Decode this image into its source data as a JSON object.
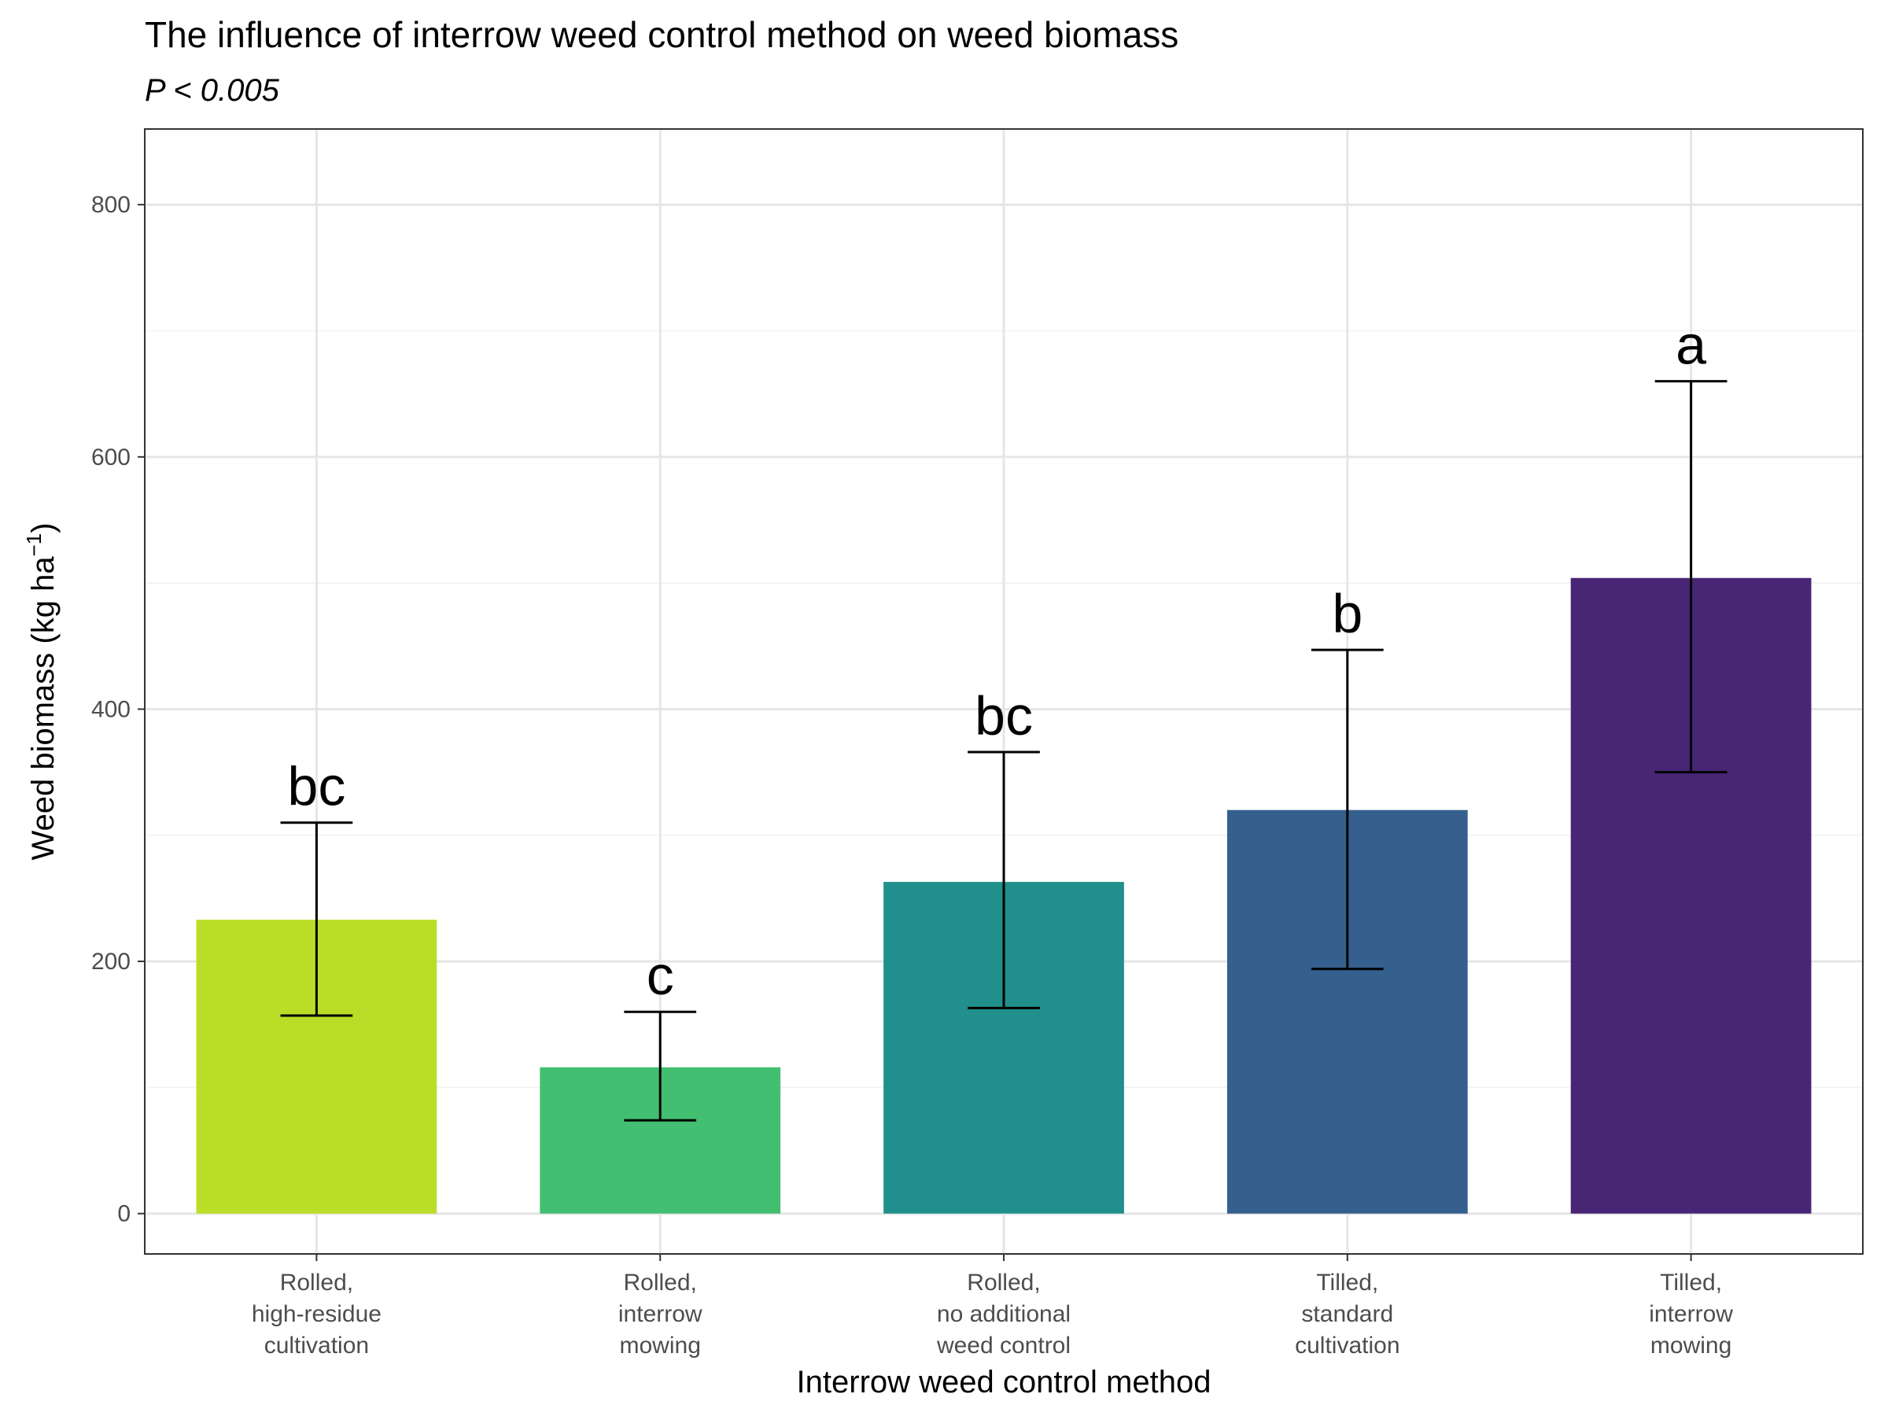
{
  "chart_data": {
    "type": "bar",
    "title": "The influence of interrow weed control method on weed biomass",
    "subtitle": "P < 0.005",
    "xlabel": "Interrow weed control method",
    "ylabel": "Weed biomass (kg ha",
    "ylabel_superscript": "−1",
    "ylabel_close": ")",
    "ylim": [
      -32,
      860
    ],
    "yticks": [
      0,
      200,
      400,
      600,
      800
    ],
    "grid": true,
    "categories": [
      [
        "Rolled,",
        "high-residue",
        "cultivation"
      ],
      [
        "Rolled,",
        "interrow",
        "mowing"
      ],
      [
        "Rolled,",
        "no additional",
        "weed control"
      ],
      [
        "Tilled,",
        "standard",
        "cultivation"
      ],
      [
        "Tilled,",
        "interrow",
        "mowing"
      ]
    ],
    "values": [
      233,
      116,
      263,
      320,
      504
    ],
    "error_low": [
      157,
      74,
      163,
      194,
      350
    ],
    "error_high": [
      310,
      160,
      366,
      447,
      660
    ],
    "labels": [
      "bc",
      "c",
      "bc",
      "b",
      "a"
    ],
    "colors": [
      "#bade28",
      "#43bf71",
      "#21908d",
      "#35608d",
      "#482575"
    ]
  }
}
